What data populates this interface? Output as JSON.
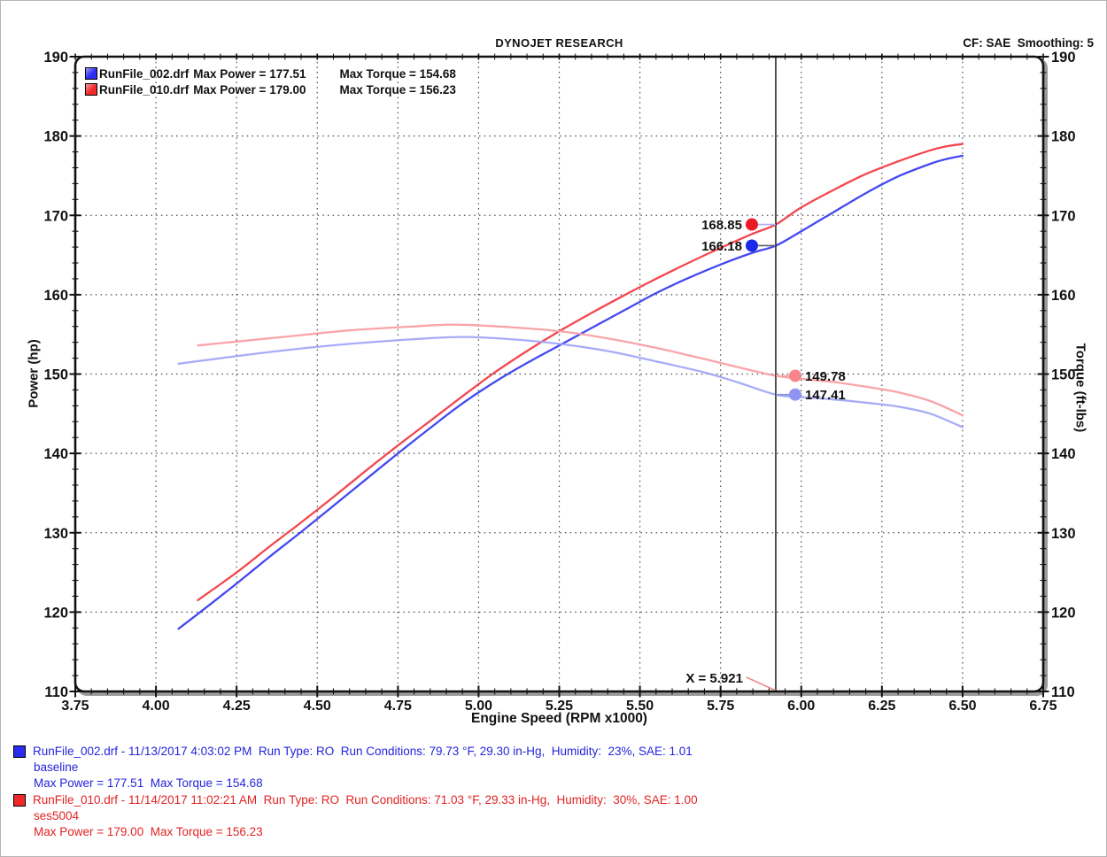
{
  "header": {
    "title": "DYNOJET RESEARCH",
    "settings": "CF: SAE  Smoothing: 5"
  },
  "legend": {
    "items": [
      {
        "file": "RunFile_002.drf",
        "max_power": "Max Power = 177.51",
        "max_torque": "Max Torque = 154.68",
        "color": "#2a2cf0"
      },
      {
        "file": "RunFile_010.drf",
        "max_power": "Max Power = 179.00",
        "max_torque": "Max Torque = 156.23",
        "color": "#f02a2a"
      }
    ]
  },
  "axes": {
    "left_label": "Power (hp)",
    "right_label": "Torque (ft-lbs)",
    "x_label": "Engine Speed (RPM x1000)"
  },
  "chart_data": {
    "type": "line",
    "title": "DYNOJET RESEARCH",
    "xlabel": "Engine Speed (RPM x1000)",
    "ylabel": "Power (hp)",
    "ylabel_right": "Torque (ft-lbs)",
    "xlim": [
      3.75,
      6.75
    ],
    "ylim": [
      110,
      190
    ],
    "grid": "dotted",
    "legend_position": "top-left",
    "x_tick_labels": [
      "3.75",
      "4.00",
      "4.25",
      "4.50",
      "4.75",
      "5.00",
      "5.25",
      "5.50",
      "5.75",
      "6.00",
      "6.25",
      "6.50",
      "6.75"
    ],
    "x_tick_step": 0.25,
    "x_minor_step": 0.05,
    "y_tick_labels": [
      "110",
      "120",
      "130",
      "140",
      "150",
      "160",
      "170",
      "180",
      "190"
    ],
    "y_tick_step": 10,
    "y_minor_step": 2,
    "cursor": {
      "x": 5.921,
      "label": "X = 5.921",
      "connector_color": "#f08a8a"
    },
    "series": [
      {
        "name": "RunFile_002.drf Power (hp)",
        "color": "#4449f0",
        "opacity": 1,
        "width": 2.3,
        "points": [
          [
            4.07,
            117.9
          ],
          [
            4.15,
            120.4
          ],
          [
            4.25,
            123.6
          ],
          [
            4.35,
            126.9
          ],
          [
            4.45,
            130.1
          ],
          [
            4.55,
            133.4
          ],
          [
            4.65,
            136.7
          ],
          [
            4.75,
            140.0
          ],
          [
            4.85,
            143.2
          ],
          [
            4.95,
            146.3
          ],
          [
            5.05,
            149.0
          ],
          [
            5.15,
            151.4
          ],
          [
            5.25,
            153.6
          ],
          [
            5.35,
            155.8
          ],
          [
            5.45,
            158.0
          ],
          [
            5.55,
            160.2
          ],
          [
            5.65,
            162.1
          ],
          [
            5.75,
            163.8
          ],
          [
            5.85,
            165.3
          ],
          [
            5.921,
            166.18
          ],
          [
            6.0,
            168.0
          ],
          [
            6.1,
            170.4
          ],
          [
            6.2,
            172.8
          ],
          [
            6.3,
            174.9
          ],
          [
            6.4,
            176.5
          ],
          [
            6.45,
            177.1
          ],
          [
            6.5,
            177.51
          ]
        ]
      },
      {
        "name": "RunFile_010.drf Power (hp)",
        "color": "#f4464e",
        "opacity": 1,
        "width": 2.3,
        "points": [
          [
            4.13,
            121.5
          ],
          [
            4.25,
            125.0
          ],
          [
            4.35,
            128.2
          ],
          [
            4.45,
            131.3
          ],
          [
            4.55,
            134.5
          ],
          [
            4.65,
            137.8
          ],
          [
            4.75,
            141.0
          ],
          [
            4.85,
            144.1
          ],
          [
            4.95,
            147.2
          ],
          [
            5.05,
            150.2
          ],
          [
            5.15,
            152.9
          ],
          [
            5.25,
            155.4
          ],
          [
            5.35,
            157.7
          ],
          [
            5.45,
            159.9
          ],
          [
            5.55,
            162.0
          ],
          [
            5.65,
            164.0
          ],
          [
            5.75,
            165.9
          ],
          [
            5.85,
            167.7
          ],
          [
            5.921,
            168.85
          ],
          [
            6.0,
            171.0
          ],
          [
            6.1,
            173.2
          ],
          [
            6.2,
            175.2
          ],
          [
            6.3,
            176.8
          ],
          [
            6.4,
            178.2
          ],
          [
            6.45,
            178.7
          ],
          [
            6.5,
            179.0
          ]
        ]
      },
      {
        "name": "RunFile_002.drf Torque (ft-lbs)",
        "color": "#9da3f7",
        "opacity": 0.9,
        "width": 2.3,
        "points": [
          [
            4.07,
            151.3
          ],
          [
            4.2,
            152.0
          ],
          [
            4.4,
            153.0
          ],
          [
            4.6,
            153.8
          ],
          [
            4.8,
            154.4
          ],
          [
            4.95,
            154.68
          ],
          [
            5.1,
            154.4
          ],
          [
            5.25,
            153.8
          ],
          [
            5.4,
            152.9
          ],
          [
            5.55,
            151.6
          ],
          [
            5.7,
            150.2
          ],
          [
            5.8,
            149.0
          ],
          [
            5.921,
            147.41
          ],
          [
            6.0,
            147.1
          ],
          [
            6.1,
            146.8
          ],
          [
            6.2,
            146.4
          ],
          [
            6.3,
            145.9
          ],
          [
            6.4,
            145.0
          ],
          [
            6.5,
            143.3
          ]
        ]
      },
      {
        "name": "RunFile_010.drf Torque (ft-lbs)",
        "color": "#f89ca2",
        "opacity": 0.92,
        "width": 2.3,
        "points": [
          [
            4.13,
            153.6
          ],
          [
            4.25,
            154.1
          ],
          [
            4.4,
            154.7
          ],
          [
            4.6,
            155.5
          ],
          [
            4.8,
            156.0
          ],
          [
            4.93,
            156.23
          ],
          [
            5.1,
            155.9
          ],
          [
            5.25,
            155.4
          ],
          [
            5.4,
            154.5
          ],
          [
            5.55,
            153.3
          ],
          [
            5.7,
            151.9
          ],
          [
            5.8,
            150.9
          ],
          [
            5.921,
            149.78
          ],
          [
            6.0,
            149.4
          ],
          [
            6.1,
            149.0
          ],
          [
            6.2,
            148.4
          ],
          [
            6.3,
            147.7
          ],
          [
            6.4,
            146.6
          ],
          [
            6.5,
            144.8
          ]
        ]
      }
    ],
    "cursor_markers": [
      {
        "label": "168.85",
        "value": 168.85,
        "side": "left",
        "dot_color": "#e81b24",
        "connector_color": "#a9b0f0"
      },
      {
        "label": "166.18",
        "value": 166.18,
        "side": "left",
        "dot_color": "#1b2ae8",
        "connector_color": "#5e5e68"
      },
      {
        "label": "149.78",
        "value": 149.78,
        "side": "right",
        "dot_color": "#f8858d",
        "connector_color": "#f3a6ab"
      },
      {
        "label": "147.41",
        "value": 147.41,
        "side": "right",
        "dot_color": "#8f94f3",
        "connector_color": "#8b90d8"
      }
    ],
    "max_values": {
      "run1_max_power": 177.51,
      "run1_max_torque": 154.68,
      "run2_max_power": 179.0,
      "run2_max_torque": 156.23
    }
  },
  "footer": {
    "runs": [
      {
        "color": "#2424dd",
        "line1": "RunFile_002.drf - 11/13/2017 4:03:02 PM  Run Type: RO  Run Conditions: 79.73 °F, 29.30 in-Hg,  Humidity:  23%, SAE: 1.01",
        "line2": "baseline",
        "line3": "Max Power = 177.51  Max Torque = 154.68"
      },
      {
        "color": "#e32222",
        "line1": "RunFile_010.drf - 11/14/2017 11:02:21 AM  Run Type: RO  Run Conditions: 71.03 °F, 29.33 in-Hg,  Humidity:  30%, SAE: 1.00",
        "line2": "ses5004",
        "line3": "Max Power = 179.00  Max Torque = 156.23"
      }
    ]
  }
}
